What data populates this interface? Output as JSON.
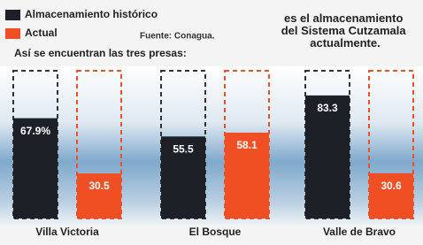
{
  "legend_extra": {
    "source": "Fuente: Conagua."
  },
  "side_note": "es el almacenamiento del Sistema Cutzamala actualmente.",
  "chart_data": {
    "type": "bar",
    "subtitle": "Así se encuentran las tres presas:",
    "categories": [
      "Villa Victoria",
      "El Bosque",
      "Valle de Bravo"
    ],
    "series": [
      {
        "name": "Almacenamiento histórico",
        "color": "#1d2026",
        "values": [
          67.9,
          55.5,
          83.3
        ],
        "value_labels": [
          "67.9%",
          "55.5",
          "83.3"
        ]
      },
      {
        "name": "Actual",
        "color": "#f04e23",
        "values": [
          30.5,
          58.1,
          30.6
        ]
      }
    ],
    "ylim": [
      0,
      100
    ]
  }
}
